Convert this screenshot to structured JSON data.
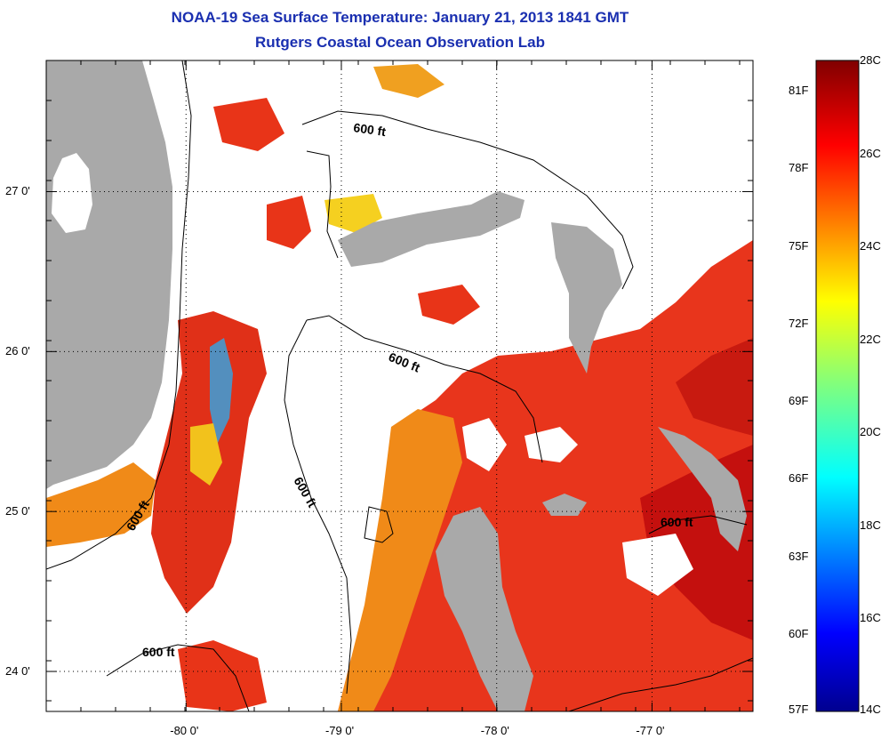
{
  "title_line1": "NOAA-19 Sea Surface Temperature:  January 21, 2013 1841 GMT",
  "title_line2": "Rutgers Coastal Ocean Observation Lab",
  "map": {
    "lon_range": [
      -80.9,
      -76.35
    ],
    "lat_range": [
      23.75,
      27.82
    ],
    "lon_ticks": [
      {
        "value": -80,
        "label": "-80 0'"
      },
      {
        "value": -79,
        "label": "-79 0'"
      },
      {
        "value": -78,
        "label": "-78 0'"
      },
      {
        "value": -77,
        "label": "-77 0'"
      }
    ],
    "lat_ticks": [
      {
        "value": 27,
        "label": "27 0'"
      },
      {
        "value": 26,
        "label": "26 0'"
      },
      {
        "value": 25,
        "label": "25 0'"
      },
      {
        "value": 24,
        "label": "24 0'"
      }
    ],
    "contour_labels": [
      "600 ft",
      "600 ft",
      "600 ft",
      "600 ft",
      "600 ft",
      "600 ft"
    ],
    "colors": {
      "land": "#a9a9a9",
      "cloud": "#ffffff",
      "warm": "#e8321a",
      "hot": "#c8100e",
      "mid": "#f07a14"
    }
  },
  "colorbar": {
    "celsius_labels": [
      "28C",
      "26C",
      "24C",
      "22C",
      "20C",
      "18C",
      "16C",
      "14C"
    ],
    "fahrenheit_labels": [
      "81F",
      "78F",
      "75F",
      "72F",
      "69F",
      "66F",
      "63F",
      "60F",
      "57F"
    ]
  }
}
